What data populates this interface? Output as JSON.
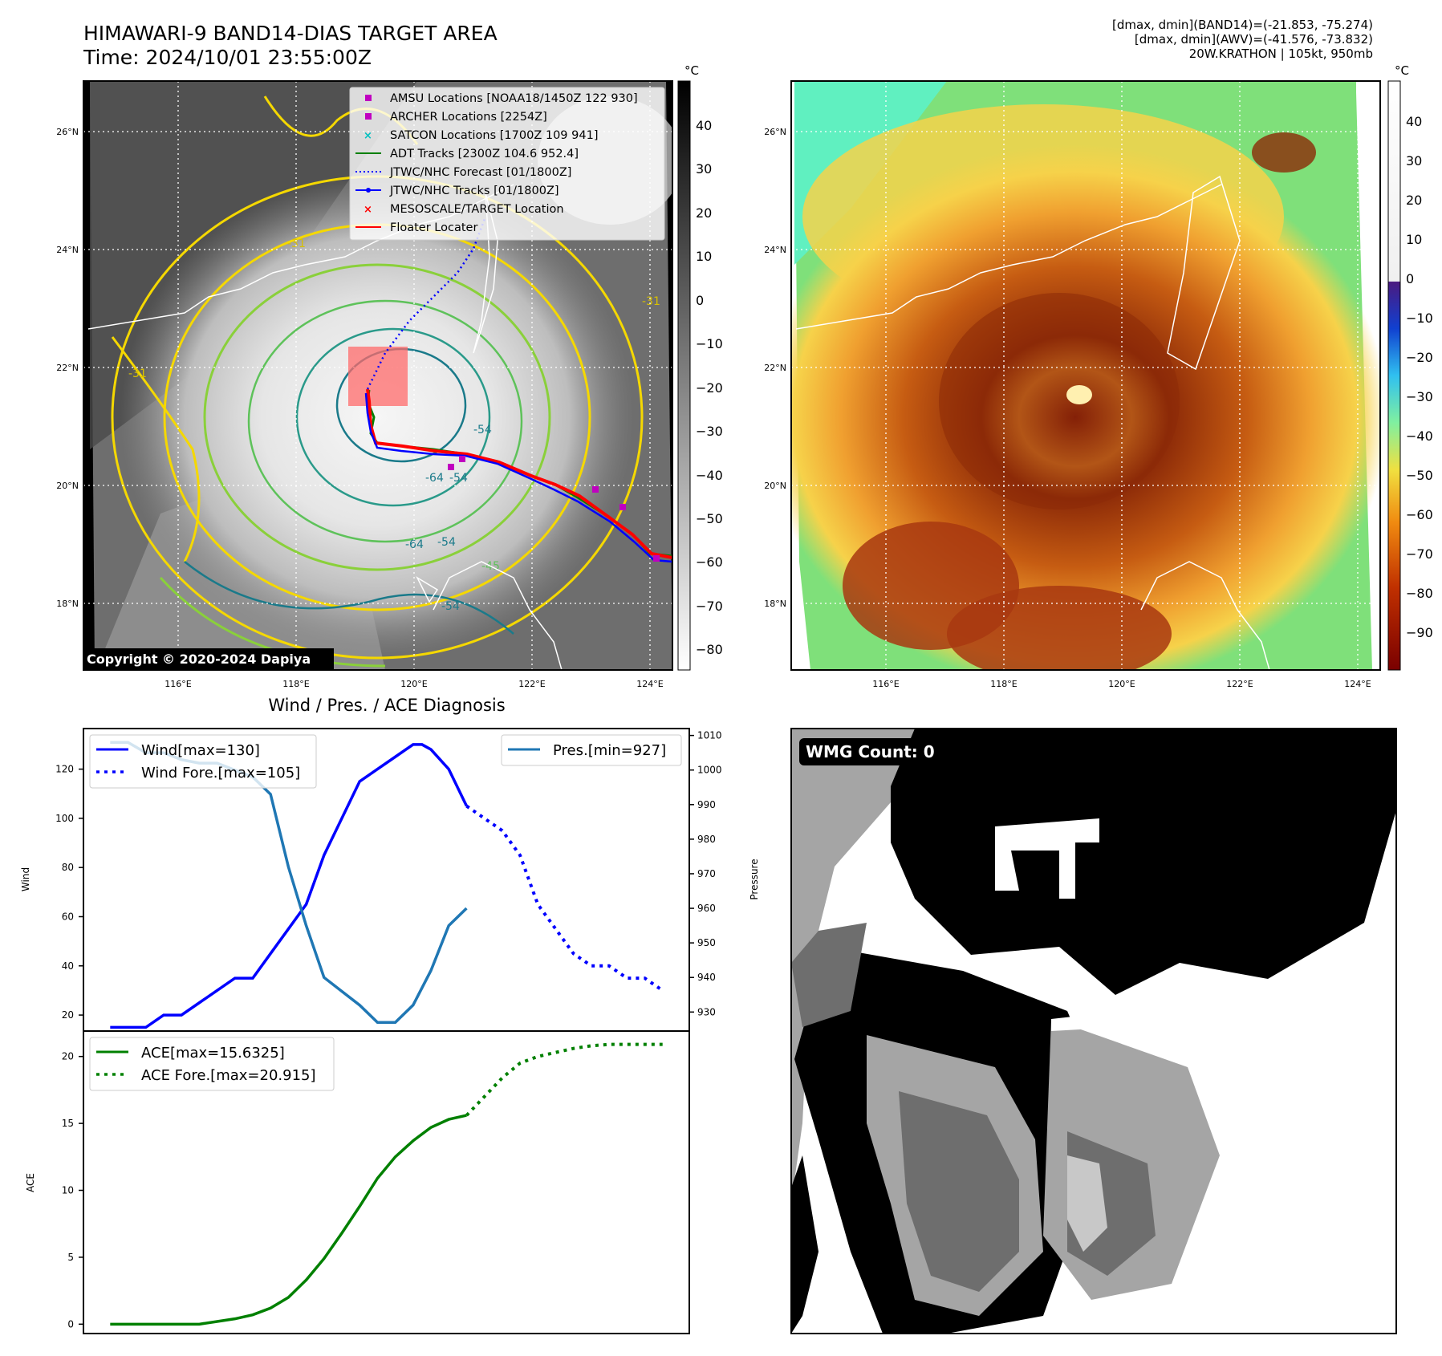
{
  "header": {
    "title": "HIMAWARI-9 BAND14-DIAS TARGET AREA",
    "time": "Time: 2024/10/01 23:55:00Z",
    "info_band14": "[dmax, dmin](BAND14)=(-21.853, -75.274)",
    "info_awv": "[dmax, dmin](AWV)=(-41.576, -73.832)",
    "info_storm": "20W.KRATHON | 105kt, 950mb"
  },
  "map_ir": {
    "lat_labels": [
      "26°N",
      "24°N",
      "22°N",
      "20°N",
      "18°N"
    ],
    "lon_labels": [
      "116°E",
      "118°E",
      "120°E",
      "122°E",
      "124°E"
    ],
    "legend": [
      {
        "marker": "square",
        "color": "#c000c0",
        "label": "AMSU Locations [NOAA18/1450Z 122 930]"
      },
      {
        "marker": "square",
        "color": "#c000c0",
        "label": "ARCHER Locations [2254Z]"
      },
      {
        "marker": "x",
        "color": "#00c0c0",
        "label": "SATCON Locations [1700Z 109 941]"
      },
      {
        "marker": "line",
        "color": "#008000",
        "label": "ADT Tracks [2300Z 104.6 952.4]"
      },
      {
        "marker": "dotted",
        "color": "#0000ff",
        "label": "JTWC/NHC Forecast [01/1800Z]"
      },
      {
        "marker": "dotline",
        "color": "#0000ff",
        "label": "JTWC/NHC Tracks [01/1800Z]"
      },
      {
        "marker": "x",
        "color": "#ff0000",
        "label": "MESOSCALE/TARGET Location"
      },
      {
        "marker": "line",
        "color": "#ff0000",
        "label": "Floater Locater"
      }
    ],
    "contour_labels": [
      "-31",
      "-31",
      "-54",
      "-54",
      "-64",
      "-54",
      "-45",
      "-31",
      "-54",
      "-64"
    ],
    "copyright": "Copyright © 2020-2024 Dapiya",
    "colorbar_unit": "°C",
    "colorbar_ticks": [
      "40",
      "30",
      "20",
      "10",
      "0",
      "−10",
      "−20",
      "−30",
      "−40",
      "−50",
      "−60",
      "−70",
      "−80"
    ]
  },
  "map_awv": {
    "lat_labels": [
      "26°N",
      "24°N",
      "22°N",
      "20°N",
      "18°N"
    ],
    "lon_labels": [
      "116°E",
      "118°E",
      "120°E",
      "122°E",
      "124°E"
    ],
    "colorbar_unit": "°C",
    "colorbar_ticks": [
      "40",
      "30",
      "20",
      "10",
      "0",
      "−10",
      "−20",
      "−30",
      "−40",
      "−50",
      "−60",
      "−70",
      "−80",
      "−90"
    ]
  },
  "diagnosis_title": "Wind / Pres. / ACE Diagnosis",
  "wmg": {
    "label": "WMG Count: 0"
  },
  "chart_data": [
    {
      "type": "line",
      "title": "Wind / Pres. / ACE Diagnosis",
      "ylabel": "Wind",
      "y2label": "Pressure",
      "ylim": [
        13.5,
        136.5
      ],
      "y2lim": [
        924.5,
        1012
      ],
      "yticks": [
        20,
        40,
        60,
        80,
        100,
        120
      ],
      "y2ticks": [
        930,
        940,
        950,
        960,
        970,
        980,
        990,
        1000,
        1010
      ],
      "series": [
        {
          "name": "Wind[max=130]",
          "axis": "left",
          "style": "solid",
          "color": "#0000ff",
          "x": [
            0,
            1,
            2,
            3,
            4,
            5,
            6,
            7,
            8,
            9,
            10,
            11,
            12,
            13,
            14,
            15,
            16,
            17
          ],
          "values": [
            15,
            15,
            15,
            20,
            20,
            25,
            30,
            35,
            35,
            45,
            55,
            65,
            85,
            100,
            115,
            120,
            125,
            130
          ]
        },
        {
          "name": "Wind Fore.[max=105]",
          "axis": "left",
          "style": "dotted",
          "color": "#0000ff",
          "x": [
            20,
            21,
            22,
            23,
            24,
            25,
            26,
            27,
            28,
            29,
            30,
            31
          ],
          "values": [
            105,
            100,
            95,
            85,
            65,
            55,
            45,
            40,
            40,
            35,
            35,
            30
          ]
        },
        {
          "name": "Pres.[min=927]",
          "axis": "right",
          "style": "solid",
          "color": "#1f77b4",
          "x": [
            0,
            1,
            2,
            3,
            4,
            5,
            6,
            7,
            8,
            9,
            10,
            11,
            12,
            13,
            14,
            15,
            16,
            17,
            18,
            19,
            20
          ],
          "values": [
            1008,
            1008,
            1005,
            1005,
            1003,
            1002,
            1002,
            1000,
            998,
            993,
            972,
            955,
            940,
            936,
            932,
            927,
            927,
            932,
            942,
            955,
            960
          ]
        }
      ],
      "extra_points": [
        {
          "series": "Wind[max=130]",
          "x": [
            17.5,
            18,
            19,
            20
          ],
          "values": [
            130,
            128,
            120,
            105
          ]
        }
      ]
    },
    {
      "type": "line",
      "ylabel": "ACE",
      "ylim": [
        -0.7,
        21.9
      ],
      "yticks": [
        0,
        5,
        10,
        15,
        20
      ],
      "series": [
        {
          "name": "ACE[max=15.6325]",
          "style": "solid",
          "color": "#008000",
          "x": [
            0,
            1,
            2,
            3,
            4,
            5,
            6,
            7,
            8,
            9,
            10,
            11,
            12,
            13,
            14,
            15,
            16,
            17,
            18,
            19,
            20
          ],
          "values": [
            0,
            0,
            0,
            0,
            0,
            0,
            0.2,
            0.4,
            0.7,
            1.2,
            2.0,
            3.3,
            4.9,
            6.8,
            8.8,
            10.9,
            12.5,
            13.7,
            14.7,
            15.3,
            15.6
          ]
        },
        {
          "name": "ACE Fore.[max=20.915]",
          "style": "dotted",
          "color": "#008000",
          "x": [
            20,
            21,
            22,
            23,
            24,
            25,
            26,
            27,
            28,
            29,
            30,
            31
          ],
          "values": [
            15.6,
            17.0,
            18.4,
            19.5,
            20.0,
            20.3,
            20.6,
            20.8,
            20.9,
            20.9,
            20.9,
            20.9
          ]
        }
      ]
    }
  ]
}
